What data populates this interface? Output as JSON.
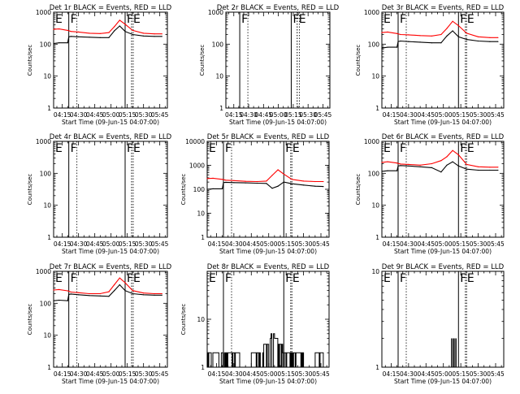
{
  "chart_data": [
    {
      "type": "line",
      "title": "Det 1r BLACK = Events, RED = LLD",
      "ylabel": "Counts/sec",
      "xlabel": "Start Time (09-Jun-15 04:07:00)",
      "yscale": "log",
      "ylim": [
        1,
        1000
      ],
      "yticks": [
        "1",
        "10",
        "100",
        "1000"
      ],
      "xticks": [
        "04:15",
        "04:30",
        "04:45",
        "05:00",
        "05:15",
        "05:30",
        "05:45"
      ],
      "xlim": [
        "04:07",
        "05:52"
      ],
      "flags": [
        {
          "label": "E",
          "at": "04:07"
        },
        {
          "label": "F",
          "at": "04:21"
        },
        {
          "label": "F",
          "at": "05:13"
        },
        {
          "label": "E",
          "at": "05:19"
        }
      ],
      "series": [
        {
          "color": "#ff0000",
          "x": [
            "04:07",
            "04:12",
            "04:20",
            "04:23",
            "04:30",
            "04:40",
            "04:50",
            "04:58",
            "05:03",
            "05:08",
            "05:13",
            "05:20",
            "05:30",
            "05:40",
            "05:47"
          ],
          "values": [
            290,
            300,
            270,
            250,
            240,
            220,
            215,
            230,
            350,
            560,
            420,
            270,
            220,
            210,
            210
          ]
        },
        {
          "color": "#000000",
          "x": [
            "04:07",
            "04:12",
            "04:20",
            "04:21",
            "04:23",
            "04:30",
            "04:40",
            "04:50",
            "04:58",
            "05:03",
            "05:08",
            "05:13",
            "05:20",
            "05:30",
            "05:40",
            "05:47"
          ],
          "values": [
            105,
            110,
            110,
            170,
            175,
            170,
            165,
            160,
            160,
            260,
            370,
            250,
            200,
            180,
            175,
            175
          ]
        }
      ]
    },
    {
      "type": "line",
      "title": "Det 2r BLACK = Events, RED = LLD",
      "ylabel": "Counts/sec",
      "xlabel": "Start Time (09-Jun-15 04:07:00)",
      "yscale": "log",
      "ylim": [
        1,
        1000
      ],
      "yticks": [
        "1",
        "10",
        "100",
        "1000"
      ],
      "xticks": [
        "04:15",
        "04:30",
        "04:45",
        "05:00",
        "05:15",
        "05:30",
        "05:45"
      ],
      "xlim": [
        "04:07",
        "05:52"
      ],
      "flags": [
        {
          "label": "F",
          "at": "04:21"
        },
        {
          "label": "F",
          "at": "05:13"
        },
        {
          "label": "E",
          "at": "05:19"
        }
      ],
      "series": []
    },
    {
      "type": "line",
      "title": "Det 3r BLACK = Events, RED = LLD",
      "ylabel": "Counts/sec",
      "xlabel": "Start Time (09-Jun-15 04:07:00)",
      "yscale": "log",
      "ylim": [
        1,
        1000
      ],
      "yticks": [
        "1",
        "10",
        "100",
        "1000"
      ],
      "xticks": [
        "04:15",
        "04:30",
        "04:45",
        "05:00",
        "05:15",
        "05:30",
        "05:45"
      ],
      "xlim": [
        "04:07",
        "05:52"
      ],
      "flags": [
        {
          "label": "E",
          "at": "04:07"
        },
        {
          "label": "F",
          "at": "04:21"
        },
        {
          "label": "F",
          "at": "05:13"
        },
        {
          "label": "E",
          "at": "05:19"
        }
      ],
      "series": [
        {
          "color": "#ff0000",
          "x": [
            "04:07",
            "04:12",
            "04:20",
            "04:23",
            "04:30",
            "04:40",
            "04:50",
            "04:58",
            "05:03",
            "05:08",
            "05:13",
            "05:20",
            "05:30",
            "05:40",
            "05:47"
          ],
          "values": [
            230,
            240,
            215,
            200,
            195,
            185,
            180,
            200,
            310,
            520,
            380,
            220,
            170,
            160,
            160
          ]
        },
        {
          "color": "#000000",
          "x": [
            "04:07",
            "04:12",
            "04:20",
            "04:21",
            "04:23",
            "04:30",
            "04:40",
            "04:50",
            "04:58",
            "05:03",
            "05:08",
            "05:13",
            "05:20",
            "05:30",
            "05:40",
            "05:47"
          ],
          "values": [
            75,
            80,
            80,
            120,
            125,
            120,
            115,
            110,
            110,
            180,
            260,
            170,
            140,
            125,
            120,
            120
          ]
        }
      ]
    },
    {
      "type": "line",
      "title": "Det 4r BLACK = Events, RED = LLD",
      "ylabel": "Counts/sec",
      "xlabel": "Start Time (09-Jun-15 04:07:00)",
      "yscale": "log",
      "ylim": [
        1,
        1000
      ],
      "yticks": [
        "1",
        "10",
        "100",
        "1000"
      ],
      "xticks": [
        "04:15",
        "04:30",
        "04:45",
        "05:00",
        "05:15",
        "05:30",
        "05:45"
      ],
      "xlim": [
        "04:07",
        "05:52"
      ],
      "flags": [
        {
          "label": "E",
          "at": "04:07"
        },
        {
          "label": "F",
          "at": "04:21"
        },
        {
          "label": "F",
          "at": "05:13"
        },
        {
          "label": "E",
          "at": "05:19"
        }
      ],
      "series": []
    },
    {
      "type": "line",
      "title": "Det 5r BLACK = Events, RED = LLD",
      "ylabel": "Counts/sec",
      "xlabel": "Start Time (09-Jun-15 04:07:00)",
      "yscale": "log",
      "ylim": [
        1,
        10000
      ],
      "yticks": [
        "1",
        "10",
        "100",
        "1000",
        "10000"
      ],
      "xticks": [
        "04:15",
        "04:30",
        "04:45",
        "05:00",
        "05:15",
        "05:30",
        "05:45"
      ],
      "xlim": [
        "04:07",
        "05:52"
      ],
      "flags": [
        {
          "label": "E",
          "at": "04:07"
        },
        {
          "label": "F",
          "at": "04:21"
        },
        {
          "label": "F",
          "at": "05:13"
        },
        {
          "label": "E",
          "at": "05:19"
        }
      ],
      "series": [
        {
          "color": "#ff0000",
          "x": [
            "04:07",
            "04:12",
            "04:20",
            "04:23",
            "04:30",
            "04:40",
            "04:50",
            "04:58",
            "05:03",
            "05:08",
            "05:13",
            "05:20",
            "05:30",
            "05:40",
            "05:47"
          ],
          "values": [
            280,
            290,
            260,
            240,
            230,
            215,
            210,
            220,
            380,
            650,
            430,
            260,
            220,
            210,
            210
          ]
        },
        {
          "color": "#000000",
          "x": [
            "04:07",
            "04:12",
            "04:20",
            "04:21",
            "04:23",
            "04:30",
            "04:40",
            "04:50",
            "04:58",
            "05:03",
            "05:08",
            "05:13",
            "05:20",
            "05:30",
            "05:40",
            "05:47"
          ],
          "values": [
            100,
            105,
            105,
            190,
            195,
            190,
            185,
            180,
            175,
            110,
            135,
            200,
            170,
            150,
            135,
            130
          ]
        }
      ]
    },
    {
      "type": "line",
      "title": "Det 6r BLACK = Events, RED = LLD",
      "ylabel": "Counts/sec",
      "xlabel": "Start Time (09-Jun-15 04:07:00)",
      "yscale": "log",
      "ylim": [
        1,
        1000
      ],
      "yticks": [
        "1",
        "10",
        "100",
        "1000"
      ],
      "xticks": [
        "04:15",
        "04:30",
        "04:45",
        "05:00",
        "05:15",
        "05:30",
        "05:45"
      ],
      "xlim": [
        "04:07",
        "05:52"
      ],
      "flags": [
        {
          "label": "E",
          "at": "04:07"
        },
        {
          "label": "F",
          "at": "04:21"
        },
        {
          "label": "F",
          "at": "05:13"
        },
        {
          "label": "E",
          "at": "05:19"
        }
      ],
      "series": [
        {
          "color": "#ff0000",
          "x": [
            "04:07",
            "04:12",
            "04:20",
            "04:23",
            "04:30",
            "04:40",
            "04:50",
            "04:58",
            "05:03",
            "05:08",
            "05:13",
            "05:20",
            "05:30",
            "05:40",
            "05:47"
          ],
          "values": [
            220,
            230,
            210,
            195,
            190,
            180,
            200,
            250,
            330,
            520,
            380,
            190,
            160,
            155,
            155
          ]
        },
        {
          "color": "#000000",
          "x": [
            "04:07",
            "04:12",
            "04:20",
            "04:21",
            "04:23",
            "04:30",
            "04:40",
            "04:50",
            "04:58",
            "05:03",
            "05:08",
            "05:13",
            "05:20",
            "05:30",
            "05:40",
            "05:47"
          ],
          "values": [
            115,
            120,
            120,
            170,
            175,
            170,
            160,
            150,
            110,
            180,
            230,
            170,
            135,
            125,
            125,
            125
          ]
        }
      ]
    },
    {
      "type": "line",
      "title": "Det 7r BLACK = Events, RED = LLD",
      "ylabel": "Counts/sec",
      "xlabel": "Start Time (09-Jun-15 04:07:00)",
      "yscale": "log",
      "ylim": [
        1,
        1000
      ],
      "yticks": [
        "1",
        "10",
        "100",
        "1000"
      ],
      "xticks": [
        "04:15",
        "04:30",
        "04:45",
        "05:00",
        "05:15",
        "05:30",
        "05:45"
      ],
      "xlim": [
        "04:07",
        "05:52"
      ],
      "flags": [
        {
          "label": "E",
          "at": "04:07"
        },
        {
          "label": "F",
          "at": "04:21"
        },
        {
          "label": "F",
          "at": "05:13"
        },
        {
          "label": "E",
          "at": "05:19"
        }
      ],
      "series": [
        {
          "color": "#ff0000",
          "x": [
            "04:07",
            "04:12",
            "04:20",
            "04:23",
            "04:30",
            "04:40",
            "04:50",
            "04:58",
            "05:03",
            "05:08",
            "05:13",
            "05:20",
            "05:30",
            "05:40",
            "05:47"
          ],
          "values": [
            260,
            270,
            245,
            225,
            215,
            200,
            200,
            230,
            380,
            620,
            440,
            250,
            210,
            200,
            200
          ]
        },
        {
          "color": "#000000",
          "x": [
            "04:07",
            "04:12",
            "04:20",
            "04:21",
            "04:23",
            "04:30",
            "04:40",
            "04:50",
            "04:58",
            "05:03",
            "05:08",
            "05:13",
            "05:20",
            "05:30",
            "05:40",
            "05:47"
          ],
          "values": [
            120,
            125,
            120,
            190,
            195,
            185,
            175,
            170,
            165,
            250,
            380,
            250,
            200,
            185,
            180,
            180
          ]
        }
      ]
    },
    {
      "type": "line",
      "title": "Det 8r BLACK = Events, RED = LLD",
      "ylabel": "Counts/sec",
      "xlabel": "Start Time (09-Jun-15 04:07:00)",
      "yscale": "log",
      "ylim": [
        1,
        100
      ],
      "yticks": [
        "1",
        "10"
      ],
      "xticks": [
        "04:15",
        "04:30",
        "04:45",
        "05:00",
        "05:15",
        "05:30",
        "05:45"
      ],
      "xlim": [
        "04:07",
        "05:52"
      ],
      "flags": [
        {
          "label": "E",
          "at": "04:07"
        },
        {
          "label": "F",
          "at": "04:21"
        },
        {
          "label": "F",
          "at": "05:13"
        },
        {
          "label": "E",
          "at": "05:19"
        }
      ],
      "series": [
        {
          "color": "#000000",
          "mode": "steps",
          "x": [
            "04:07",
            "04:15",
            "04:25",
            "04:35",
            "04:45",
            "04:50",
            "04:55",
            "04:58",
            "05:00",
            "05:02",
            "05:05",
            "05:08",
            "05:12",
            "05:20",
            "05:30",
            "05:40",
            "05:47"
          ],
          "values": [
            2,
            2,
            2,
            1,
            2,
            2,
            3,
            3,
            4,
            5,
            4,
            3,
            2,
            2,
            1,
            2,
            2
          ]
        }
      ]
    },
    {
      "type": "line",
      "title": "Det 9r BLACK = Events, RED = LLD",
      "ylabel": "",
      "xlabel": "Start Time (09-Jun-15 04:07:00)",
      "yscale": "log",
      "ylim": [
        1,
        10
      ],
      "yticks": [
        "1",
        "10"
      ],
      "xticks": [
        "04:15",
        "04:30",
        "04:45",
        "05:00",
        "05:15",
        "05:30",
        "05:45"
      ],
      "xlim": [
        "04:07",
        "05:52"
      ],
      "flags": [
        {
          "label": "E",
          "at": "04:07"
        },
        {
          "label": "F",
          "at": "04:21"
        },
        {
          "label": "F",
          "at": "05:13"
        },
        {
          "label": "E",
          "at": "05:19"
        }
      ],
      "series": [
        {
          "color": "#000000",
          "mode": "spikes",
          "x": [
            "05:07",
            "05:08",
            "05:09",
            "05:10",
            "05:11"
          ],
          "values": [
            2,
            2,
            2,
            2,
            2
          ]
        }
      ]
    }
  ]
}
